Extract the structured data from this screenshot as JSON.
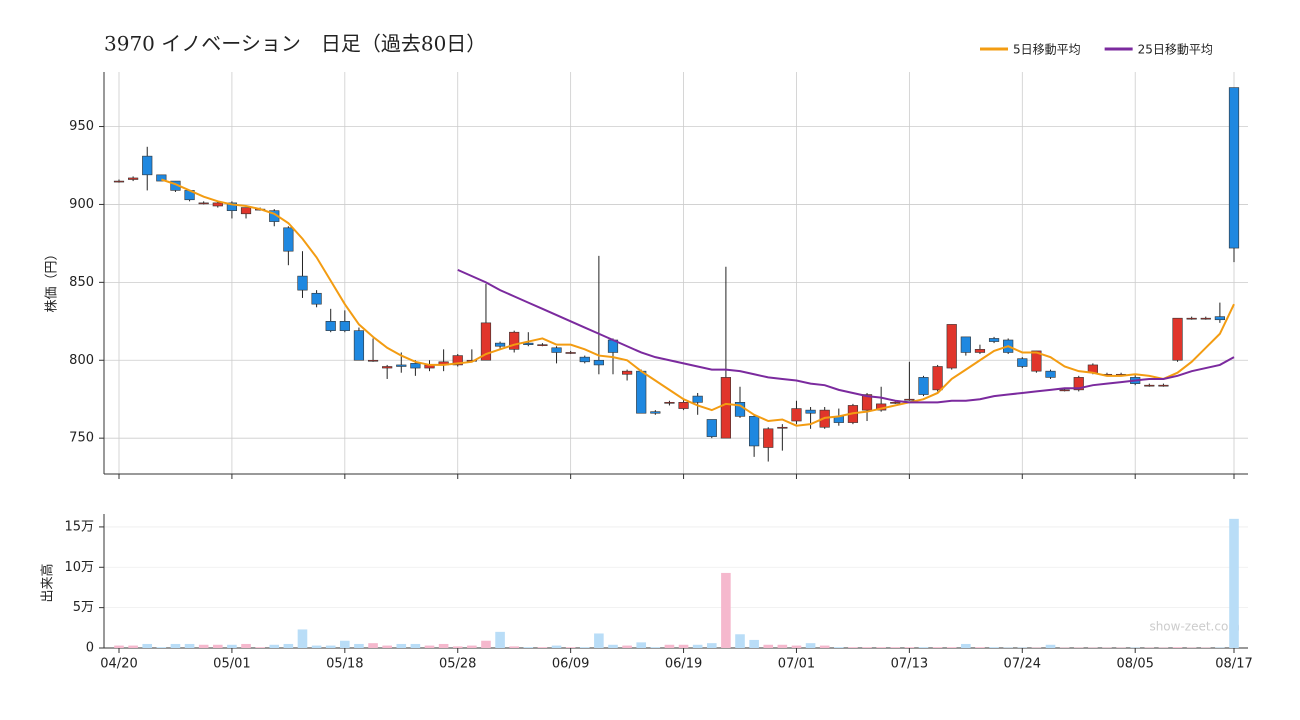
{
  "chart_data": {
    "type": "candlestick",
    "title": "3970 イノベーション　日足（過去80日）",
    "ylabel": "株価（円）",
    "categories": [
      "04/20",
      null,
      null,
      null,
      null,
      null,
      null,
      null,
      "05/01",
      null,
      null,
      null,
      null,
      null,
      null,
      null,
      "05/18",
      null,
      null,
      null,
      null,
      null,
      null,
      null,
      "05/28",
      null,
      null,
      null,
      null,
      null,
      null,
      null,
      "06/09",
      null,
      null,
      null,
      null,
      null,
      null,
      null,
      "06/19",
      null,
      null,
      null,
      null,
      null,
      null,
      null,
      "07/01",
      null,
      null,
      null,
      null,
      null,
      null,
      null,
      "07/13",
      null,
      null,
      null,
      null,
      null,
      null,
      null,
      "07/24",
      null,
      null,
      null,
      null,
      null,
      null,
      null,
      "08/05",
      null,
      null,
      null,
      null,
      null,
      null,
      "08/17"
    ],
    "open": [
      915,
      916,
      931,
      919,
      915,
      909,
      901,
      899,
      901,
      894,
      897,
      896,
      885,
      854,
      843,
      825,
      825,
      819,
      800,
      795,
      797,
      798,
      795,
      797,
      797,
      800,
      800,
      811,
      807,
      811,
      810,
      808,
      805,
      802,
      800,
      813,
      791,
      793,
      767,
      773,
      769,
      777,
      762,
      750,
      773,
      764,
      744,
      757,
      761,
      768,
      757,
      764,
      760,
      768,
      768,
      773,
      775,
      789,
      781,
      795,
      815,
      805,
      814,
      813,
      801,
      793,
      793,
      781,
      781,
      792,
      791,
      791,
      789,
      784,
      784,
      800,
      827,
      827,
      828,
      975
    ],
    "high": [
      916,
      918,
      937,
      919,
      915,
      909,
      902,
      902,
      902,
      898,
      898,
      897,
      886,
      870,
      845,
      833,
      832,
      821,
      814,
      797,
      805,
      800,
      800,
      807,
      804,
      807,
      849,
      812,
      819,
      818,
      811,
      809,
      806,
      803,
      867,
      814,
      794,
      794,
      768,
      774,
      775,
      779,
      762,
      860,
      783,
      765,
      757,
      759,
      774,
      770,
      770,
      769,
      772,
      779,
      783,
      774,
      799,
      790,
      797,
      823,
      815,
      810,
      815,
      814,
      802,
      806,
      794,
      782,
      790,
      798,
      792,
      792,
      791,
      785,
      785,
      827,
      828,
      828,
      837,
      975
    ],
    "low": [
      914,
      915,
      909,
      915,
      908,
      902,
      900,
      898,
      891,
      891,
      896,
      886,
      861,
      840,
      834,
      818,
      818,
      800,
      799,
      788,
      792,
      790,
      793,
      793,
      796,
      799,
      800,
      807,
      805,
      809,
      809,
      798,
      804,
      798,
      791,
      791,
      787,
      766,
      765,
      771,
      768,
      765,
      750,
      750,
      763,
      738,
      735,
      742,
      759,
      756,
      756,
      758,
      759,
      761,
      767,
      772,
      774,
      777,
      780,
      794,
      803,
      804,
      811,
      804,
      795,
      792,
      788,
      780,
      780,
      791,
      790,
      790,
      784,
      783,
      783,
      799,
      826,
      826,
      824,
      863
    ],
    "close": [
      915,
      917,
      919,
      915,
      909,
      903,
      901,
      901,
      896,
      898,
      897,
      889,
      870,
      845,
      836,
      819,
      819,
      800,
      800,
      796,
      796,
      795,
      797,
      799,
      803,
      800,
      824,
      809,
      818,
      810,
      810,
      805,
      805,
      799,
      797,
      805,
      793,
      766,
      766,
      773,
      773,
      773,
      751,
      789,
      764,
      745,
      756,
      757,
      769,
      766,
      768,
      760,
      771,
      778,
      772,
      773,
      775,
      778,
      796,
      823,
      805,
      807,
      812,
      805,
      796,
      806,
      789,
      781,
      789,
      797,
      791,
      791,
      785,
      784,
      784,
      827,
      827,
      827,
      826,
      872
    ],
    "up_color": "#e0352b",
    "down_color": "#1f88e0",
    "series": [
      {
        "name": "5日移動平均",
        "color": "#f39c12",
        "values": [
          null,
          null,
          null,
          916,
          913,
          909,
          905,
          902,
          900,
          899,
          897,
          894,
          888,
          878,
          866,
          851,
          836,
          823,
          815,
          808,
          803,
          799,
          797,
          797,
          798,
          799,
          804,
          807,
          810,
          812,
          814,
          810,
          810,
          807,
          803,
          802,
          800,
          793,
          787,
          781,
          775,
          771,
          768,
          772,
          771,
          765,
          761,
          762,
          758,
          759,
          763,
          764,
          766,
          767,
          769,
          771,
          773,
          775,
          779,
          788,
          794,
          800,
          806,
          809,
          805,
          805,
          802,
          796,
          793,
          792,
          790,
          790,
          791,
          790,
          788,
          792,
          799,
          808,
          817,
          836
        ]
      },
      {
        "name": "25日移動平均",
        "color": "#7b2a9e",
        "values": [
          null,
          null,
          null,
          null,
          null,
          null,
          null,
          null,
          null,
          null,
          null,
          null,
          null,
          null,
          null,
          null,
          null,
          null,
          null,
          null,
          null,
          null,
          null,
          null,
          858,
          854,
          850,
          845,
          841,
          837,
          833,
          829,
          825,
          821,
          817,
          813,
          809,
          805,
          802,
          800,
          798,
          796,
          794,
          794,
          793,
          791,
          789,
          788,
          787,
          785,
          784,
          781,
          779,
          777,
          776,
          774,
          773,
          773,
          773,
          774,
          774,
          775,
          777,
          778,
          779,
          780,
          781,
          782,
          782,
          784,
          785,
          786,
          787,
          788,
          788,
          790,
          793,
          795,
          797,
          802
        ]
      }
    ],
    "ylim": [
      727,
      985
    ],
    "yticks": [
      750,
      800,
      850,
      900,
      950
    ],
    "grid": true,
    "volume": {
      "ylabel": "出来高",
      "up_color": "#f5b8cd",
      "down_color": "#b9ddf7",
      "values": [
        3000,
        3000,
        5000,
        1000,
        5000,
        5000,
        4000,
        4000,
        4000,
        5000,
        1000,
        4000,
        5000,
        23000,
        3000,
        3000,
        9000,
        5000,
        6000,
        3000,
        5000,
        5000,
        3000,
        5000,
        2000,
        3000,
        9000,
        20000,
        2000,
        1000,
        1000,
        3000,
        1000,
        1000,
        18000,
        4000,
        3000,
        7000,
        1000,
        4000,
        4000,
        4000,
        6000,
        93000,
        17000,
        10000,
        4000,
        4000,
        3000,
        6000,
        3000,
        1000,
        1000,
        1000,
        1000,
        1000,
        1000,
        1000,
        1000,
        1000,
        5000,
        1000,
        1000,
        500,
        500,
        500,
        4000,
        500,
        500,
        500,
        500,
        500,
        500,
        500,
        500,
        1000,
        500,
        500,
        500,
        160000
      ],
      "ylim": [
        0,
        166000
      ],
      "yticks": [
        0,
        {
          "value": 50000,
          "label": "5万"
        },
        {
          "value": 100000,
          "label": "10万"
        },
        {
          "value": 150000,
          "label": "15万"
        }
      ]
    },
    "watermark": "show-zeet.com"
  }
}
